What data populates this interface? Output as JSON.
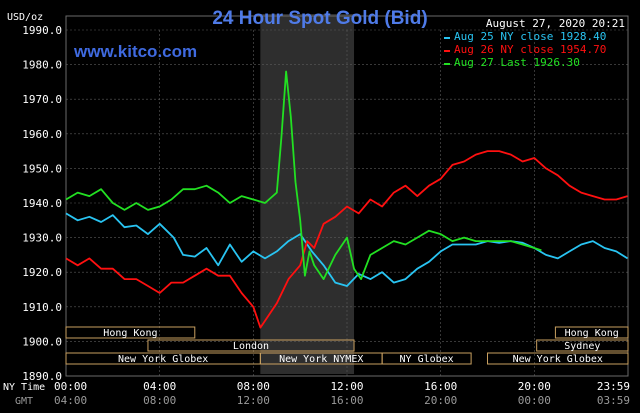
{
  "chart_data": {
    "type": "line",
    "title": "24 Hour Spot Gold (Bid)",
    "brand": "www.kitco.com",
    "timestamp": "August 27, 2020 20:21",
    "yunit": "USD/oz",
    "ylim": [
      1890,
      1990
    ],
    "yticks": [
      "1990.0",
      "1980.0",
      "1970.0",
      "1960.0",
      "1950.0",
      "1940.0",
      "1930.0",
      "1920.0",
      "1910.0",
      "1900.0",
      "1890.0"
    ],
    "xlim": [
      0,
      24
    ],
    "ny_time_label": "NY Time",
    "gmt_label": "GMT",
    "xticks_ny": [
      "00:00",
      "04:00",
      "08:00",
      "12:00",
      "16:00",
      "20:00",
      "23:59"
    ],
    "xticks_gmt": [
      "04:00",
      "08:00",
      "12:00",
      "16:00",
      "20:00",
      "00:00",
      "03:59"
    ],
    "grid": true,
    "legend_position": "top-right",
    "highlight_hours": [
      8.3,
      12.3
    ],
    "colors": {
      "background": "#000000",
      "panel_text": "#FFFFFF",
      "title": "#4F7BE8",
      "brand": "#3F6AE0",
      "grid": "#5A5A5A",
      "session_box": "#C9A060",
      "highlight": "#2E2E2E"
    },
    "series": [
      {
        "name": "Aug 25 NY close 1928.40",
        "color": "#29C4F2",
        "x": [
          0,
          0.5,
          1,
          1.5,
          2,
          2.5,
          3,
          3.5,
          4,
          4.3,
          4.6,
          5,
          5.5,
          6,
          6.5,
          7,
          7.5,
          8,
          8.5,
          9,
          9.5,
          10,
          10.5,
          11,
          11.5,
          12,
          12.5,
          13,
          13.5,
          14,
          14.5,
          15,
          15.5,
          16,
          16.5,
          17,
          17.5,
          18,
          18.5,
          19,
          19.5,
          20,
          20.5,
          21,
          21.5,
          22,
          22.5,
          23,
          23.5,
          23.98
        ],
        "y": [
          1937,
          1935,
          1936,
          1934.5,
          1936.5,
          1933,
          1933.5,
          1931,
          1934,
          1932,
          1930,
          1925,
          1924.5,
          1927,
          1922,
          1928,
          1923,
          1926,
          1924,
          1926,
          1929,
          1931,
          1926,
          1922,
          1917,
          1916,
          1919.5,
          1918,
          1920,
          1917,
          1918,
          1921,
          1923,
          1926,
          1928,
          1928,
          1928,
          1929,
          1928.5,
          1929,
          1928.5,
          1927,
          1925,
          1924,
          1926,
          1928,
          1929,
          1927,
          1926,
          1924
        ]
      },
      {
        "name": "Aug 26 NY close 1954.70",
        "color": "#FF1010",
        "x": [
          0,
          0.5,
          1,
          1.5,
          2,
          2.5,
          3,
          3.5,
          4,
          4.5,
          5,
          5.5,
          6,
          6.5,
          7,
          7.5,
          8,
          8.3,
          8.6,
          9,
          9.5,
          10,
          10.3,
          10.6,
          11,
          11.5,
          12,
          12.5,
          13,
          13.5,
          14,
          14.5,
          15,
          15.5,
          16,
          16.5,
          17,
          17.5,
          18,
          18.5,
          19,
          19.5,
          20,
          20.5,
          21,
          21.5,
          22,
          22.5,
          23,
          23.5,
          23.98
        ],
        "y": [
          1924,
          1922,
          1924,
          1921,
          1921,
          1918,
          1918,
          1916,
          1914,
          1917,
          1917,
          1919,
          1921,
          1919,
          1919,
          1914,
          1910,
          1904,
          1907,
          1911,
          1918,
          1922,
          1929,
          1927,
          1934,
          1936,
          1939,
          1937,
          1941,
          1939,
          1943,
          1945,
          1942,
          1945,
          1947,
          1951,
          1952,
          1954,
          1955,
          1955,
          1954,
          1952,
          1953,
          1950,
          1948,
          1945,
          1943,
          1942,
          1941,
          1941,
          1942
        ]
      },
      {
        "name": "Aug 27 Last 1926.30",
        "color": "#22E022",
        "x": [
          0,
          0.5,
          1,
          1.5,
          2,
          2.5,
          3,
          3.5,
          4,
          4.5,
          5,
          5.5,
          6,
          6.5,
          7,
          7.5,
          8,
          8.5,
          9,
          9.2,
          9.4,
          9.6,
          9.8,
          10,
          10.2,
          10.4,
          10.6,
          11,
          11.5,
          12,
          12.3,
          12.6,
          13,
          13.5,
          14,
          14.5,
          15,
          15.5,
          16,
          16.5,
          17,
          17.5,
          18,
          18.5,
          19,
          19.5,
          20,
          20.3
        ],
        "y": [
          1941,
          1943,
          1942,
          1944,
          1940,
          1938,
          1940,
          1938,
          1939,
          1941,
          1944,
          1944,
          1945,
          1943,
          1940,
          1942,
          1941,
          1940,
          1943,
          1959,
          1978,
          1965,
          1946,
          1935,
          1919,
          1926,
          1922,
          1918,
          1925,
          1930,
          1921,
          1918,
          1925,
          1927,
          1929,
          1928,
          1930,
          1932,
          1931,
          1929,
          1930,
          1929,
          1929,
          1929,
          1929,
          1928,
          1927,
          1926.3
        ]
      }
    ],
    "session_labels": {
      "top_row": [
        {
          "label": "Hong Kong",
          "start": 0,
          "end": 5.5
        },
        {
          "label": "Hong Kong",
          "start": 20.9,
          "end": 24
        }
      ],
      "mid_row": [
        {
          "label": "London",
          "start": 3.5,
          "end": 12.3
        },
        {
          "label": "Sydney",
          "start": 20.1,
          "end": 24
        }
      ],
      "bottom_row": [
        {
          "label": "New York Globex",
          "start": 0,
          "end": 8.3
        },
        {
          "label": "New York NYMEX",
          "start": 8.3,
          "end": 13.5
        },
        {
          "label": "NY Globex",
          "start": 13.5,
          "end": 17.3
        },
        {
          "label": "New York Globex",
          "start": 18,
          "end": 24
        }
      ]
    }
  }
}
